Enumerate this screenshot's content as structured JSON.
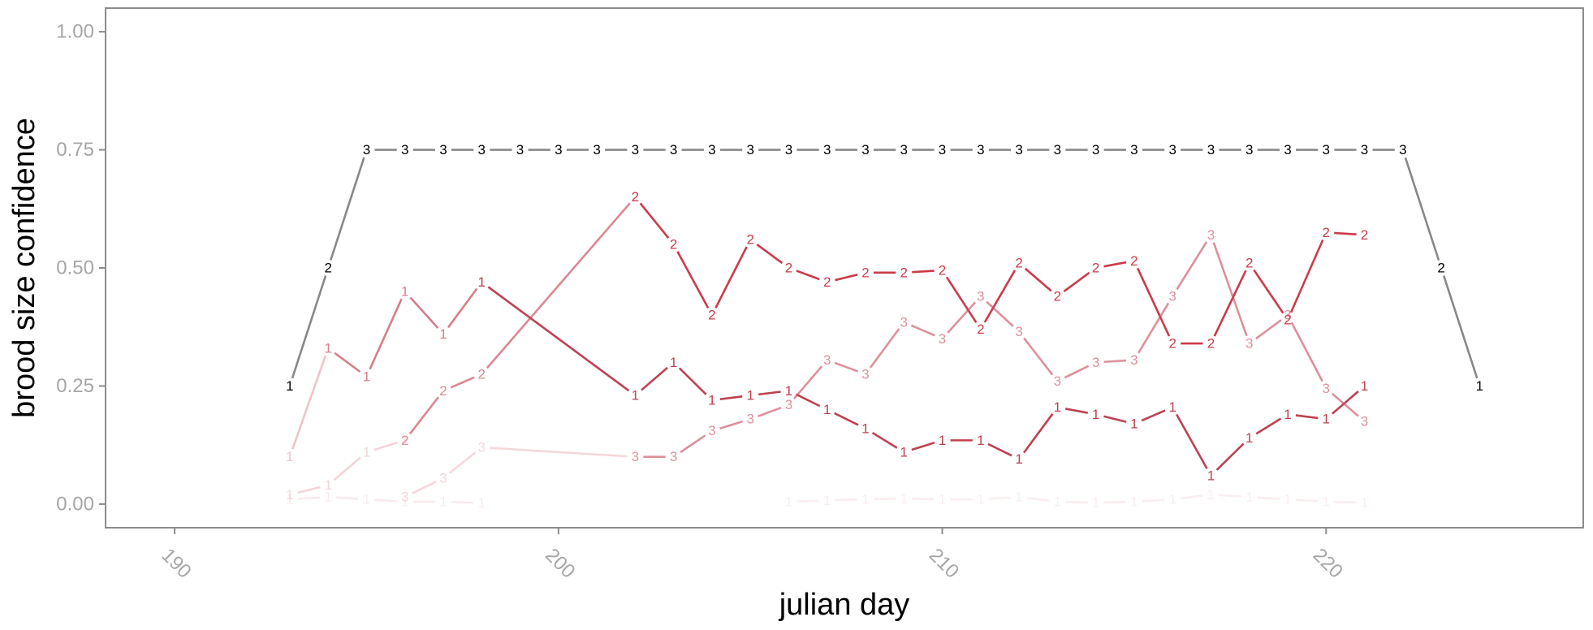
{
  "chart_data": {
    "type": "line",
    "xlabel": "julian day",
    "ylabel": "brood size confidence",
    "xlim": [
      188.2,
      226.7
    ],
    "ylim": [
      -0.05,
      1.05
    ],
    "x_ticks": [
      190,
      200,
      210,
      220
    ],
    "y_ticks": [
      0.0,
      0.25,
      0.5,
      0.75,
      1.0
    ],
    "x_tick_labels": [
      "190",
      "200",
      "210",
      "220"
    ],
    "y_tick_labels": [
      "0.00",
      "0.25",
      "0.50",
      "0.75",
      "1.00"
    ],
    "grid": false,
    "legend": "none",
    "series": [
      {
        "color": "#888888",
        "opacity": 1,
        "points": [
          {
            "x": 193,
            "y": 0.25,
            "label": "1"
          },
          {
            "x": 194,
            "y": 0.5,
            "label": "2"
          },
          {
            "x": 195,
            "y": 0.75,
            "label": "3"
          },
          {
            "x": 196,
            "y": 0.75,
            "label": "3"
          },
          {
            "x": 197,
            "y": 0.75,
            "label": "3"
          },
          {
            "x": 198,
            "y": 0.75,
            "label": "3"
          },
          {
            "x": 199,
            "y": 0.75,
            "label": "3"
          },
          {
            "x": 200,
            "y": 0.75,
            "label": "3"
          },
          {
            "x": 201,
            "y": 0.75,
            "label": "3"
          },
          {
            "x": 202,
            "y": 0.75,
            "label": "3"
          },
          {
            "x": 203,
            "y": 0.75,
            "label": "3"
          },
          {
            "x": 204,
            "y": 0.75,
            "label": "3"
          },
          {
            "x": 205,
            "y": 0.75,
            "label": "3"
          },
          {
            "x": 206,
            "y": 0.75,
            "label": "3"
          },
          {
            "x": 207,
            "y": 0.75,
            "label": "3"
          },
          {
            "x": 208,
            "y": 0.75,
            "label": "3"
          },
          {
            "x": 209,
            "y": 0.75,
            "label": "3"
          },
          {
            "x": 210,
            "y": 0.75,
            "label": "3"
          },
          {
            "x": 211,
            "y": 0.75,
            "label": "3"
          },
          {
            "x": 212,
            "y": 0.75,
            "label": "3"
          },
          {
            "x": 213,
            "y": 0.75,
            "label": "3"
          },
          {
            "x": 214,
            "y": 0.75,
            "label": "3"
          },
          {
            "x": 215,
            "y": 0.75,
            "label": "3"
          },
          {
            "x": 216,
            "y": 0.75,
            "label": "3"
          },
          {
            "x": 217,
            "y": 0.75,
            "label": "3"
          },
          {
            "x": 218,
            "y": 0.75,
            "label": "3"
          },
          {
            "x": 219,
            "y": 0.75,
            "label": "3"
          },
          {
            "x": 220,
            "y": 0.75,
            "label": "3"
          },
          {
            "x": 221,
            "y": 0.75,
            "label": "3"
          },
          {
            "x": 222,
            "y": 0.75,
            "label": "3"
          },
          {
            "x": 223,
            "y": 0.5,
            "label": "2"
          },
          {
            "x": 224,
            "y": 0.25,
            "label": "1"
          }
        ]
      },
      {
        "color": "#b22233",
        "opacity": 0.85,
        "points": [
          {
            "x": 198,
            "y": 0.47,
            "label": "1"
          },
          {
            "x": 202,
            "y": 0.23,
            "label": "1"
          },
          {
            "x": 203,
            "y": 0.3,
            "label": "1"
          },
          {
            "x": 204,
            "y": 0.22,
            "label": "1"
          },
          {
            "x": 205,
            "y": 0.23,
            "label": "1"
          },
          {
            "x": 206,
            "y": 0.24,
            "label": "1"
          },
          {
            "x": 207,
            "y": 0.2,
            "label": "1"
          },
          {
            "x": 208,
            "y": 0.16,
            "label": "1"
          },
          {
            "x": 209,
            "y": 0.11,
            "label": "1"
          },
          {
            "x": 210,
            "y": 0.135,
            "label": "1"
          },
          {
            "x": 211,
            "y": 0.135,
            "label": "1"
          },
          {
            "x": 212,
            "y": 0.095,
            "label": "1"
          },
          {
            "x": 213,
            "y": 0.205,
            "label": "1"
          },
          {
            "x": 214,
            "y": 0.19,
            "label": "1"
          },
          {
            "x": 215,
            "y": 0.17,
            "label": "1"
          },
          {
            "x": 216,
            "y": 0.205,
            "label": "1"
          },
          {
            "x": 217,
            "y": 0.06,
            "label": "1"
          },
          {
            "x": 218,
            "y": 0.14,
            "label": "1"
          },
          {
            "x": 219,
            "y": 0.19,
            "label": "1"
          },
          {
            "x": 220,
            "y": 0.18,
            "label": "1"
          },
          {
            "x": 221,
            "y": 0.25,
            "label": "1"
          }
        ]
      },
      {
        "color": "#c52838",
        "opacity": 0.9,
        "points": [
          {
            "x": 202,
            "y": 0.65,
            "label": "2"
          },
          {
            "x": 203,
            "y": 0.55,
            "label": "2"
          },
          {
            "x": 204,
            "y": 0.4,
            "label": "2"
          },
          {
            "x": 205,
            "y": 0.56,
            "label": "2"
          },
          {
            "x": 206,
            "y": 0.5,
            "label": "2"
          },
          {
            "x": 207,
            "y": 0.47,
            "label": "2"
          },
          {
            "x": 208,
            "y": 0.49,
            "label": "2"
          },
          {
            "x": 209,
            "y": 0.49,
            "label": "2"
          },
          {
            "x": 210,
            "y": 0.495,
            "label": "2"
          },
          {
            "x": 211,
            "y": 0.37,
            "label": "2"
          },
          {
            "x": 212,
            "y": 0.51,
            "label": "2"
          },
          {
            "x": 213,
            "y": 0.44,
            "label": "2"
          },
          {
            "x": 214,
            "y": 0.5,
            "label": "2"
          },
          {
            "x": 215,
            "y": 0.515,
            "label": "2"
          },
          {
            "x": 216,
            "y": 0.34,
            "label": "2"
          },
          {
            "x": 217,
            "y": 0.34,
            "label": "2"
          },
          {
            "x": 218,
            "y": 0.51,
            "label": "2"
          },
          {
            "x": 219,
            "y": 0.39,
            "label": "2"
          },
          {
            "x": 220,
            "y": 0.575,
            "label": "2"
          },
          {
            "x": 221,
            "y": 0.57,
            "label": "2"
          }
        ]
      },
      {
        "color": "#c44a58",
        "opacity": 0.7,
        "points": [
          {
            "x": 194,
            "y": 0.33,
            "label": "1"
          },
          {
            "x": 195,
            "y": 0.27,
            "label": "1"
          },
          {
            "x": 196,
            "y": 0.45,
            "label": "1"
          },
          {
            "x": 197,
            "y": 0.36,
            "label": "1"
          },
          {
            "x": 198,
            "y": 0.47,
            "label": "1"
          }
        ]
      },
      {
        "color": "#c84858",
        "opacity": 0.65,
        "points": [
          {
            "x": 196,
            "y": 0.135,
            "label": "2"
          },
          {
            "x": 197,
            "y": 0.24,
            "label": "2"
          },
          {
            "x": 198,
            "y": 0.275,
            "label": "2"
          },
          {
            "x": 202,
            "y": 0.65,
            "label": "2"
          }
        ]
      },
      {
        "color": "#c84858",
        "opacity": 0.6,
        "points": [
          {
            "x": 202,
            "y": 0.1,
            "label": "3"
          },
          {
            "x": 203,
            "y": 0.1,
            "label": "3"
          },
          {
            "x": 204,
            "y": 0.155,
            "label": "3"
          },
          {
            "x": 205,
            "y": 0.18,
            "label": "3"
          },
          {
            "x": 206,
            "y": 0.21,
            "label": "3"
          },
          {
            "x": 207,
            "y": 0.305,
            "label": "3"
          },
          {
            "x": 208,
            "y": 0.275,
            "label": "3"
          },
          {
            "x": 209,
            "y": 0.385,
            "label": "3"
          },
          {
            "x": 210,
            "y": 0.35,
            "label": "3"
          },
          {
            "x": 211,
            "y": 0.44,
            "label": "3"
          },
          {
            "x": 212,
            "y": 0.365,
            "label": "3"
          },
          {
            "x": 213,
            "y": 0.26,
            "label": "3"
          },
          {
            "x": 214,
            "y": 0.3,
            "label": "3"
          },
          {
            "x": 215,
            "y": 0.305,
            "label": "3"
          },
          {
            "x": 216,
            "y": 0.44,
            "label": "3"
          },
          {
            "x": 217,
            "y": 0.57,
            "label": "3"
          },
          {
            "x": 218,
            "y": 0.34,
            "label": "3"
          },
          {
            "x": 219,
            "y": 0.4,
            "label": "3"
          },
          {
            "x": 220,
            "y": 0.245,
            "label": "3"
          },
          {
            "x": 221,
            "y": 0.175,
            "label": "3"
          }
        ]
      },
      {
        "color": "#e08a95",
        "opacity": 0.5,
        "points": [
          {
            "x": 193,
            "y": 0.1,
            "label": "1"
          },
          {
            "x": 194,
            "y": 0.33,
            "label": "1"
          }
        ]
      },
      {
        "color": "#e7a9b1",
        "opacity": 0.5,
        "points": [
          {
            "x": 193,
            "y": 0.02,
            "label": "1"
          },
          {
            "x": 194,
            "y": 0.04,
            "label": "1"
          },
          {
            "x": 195,
            "y": 0.11,
            "label": "1"
          },
          {
            "x": 196,
            "y": 0.135,
            "label": "1"
          }
        ]
      },
      {
        "color": "#e7a9b1",
        "opacity": 0.45,
        "points": [
          {
            "x": 196,
            "y": 0.015,
            "label": "3"
          },
          {
            "x": 197,
            "y": 0.055,
            "label": "3"
          },
          {
            "x": 198,
            "y": 0.12,
            "label": "3"
          },
          {
            "x": 202,
            "y": 0.1,
            "label": "3"
          }
        ]
      },
      {
        "color": "#f0c8cd",
        "opacity": 0.35,
        "points": [
          {
            "x": 193,
            "y": 0.01,
            "label": "1"
          },
          {
            "x": 194,
            "y": 0.015,
            "label": "1"
          },
          {
            "x": 195,
            "y": 0.01,
            "label": "1"
          },
          {
            "x": 196,
            "y": 0.005,
            "label": "1"
          },
          {
            "x": 197,
            "y": 0.005,
            "label": "1"
          },
          {
            "x": 198,
            "y": 0.002,
            "label": "1"
          }
        ]
      },
      {
        "color": "#f0c8cd",
        "opacity": 0.3,
        "points": [
          {
            "x": 206,
            "y": 0.005,
            "label": "1"
          },
          {
            "x": 207,
            "y": 0.008,
            "label": "1"
          },
          {
            "x": 208,
            "y": 0.01,
            "label": "1"
          },
          {
            "x": 209,
            "y": 0.012,
            "label": "1"
          },
          {
            "x": 210,
            "y": 0.01,
            "label": "1"
          },
          {
            "x": 211,
            "y": 0.01,
            "label": "1"
          },
          {
            "x": 212,
            "y": 0.015,
            "label": "1"
          },
          {
            "x": 213,
            "y": 0.005,
            "label": "1"
          },
          {
            "x": 214,
            "y": 0.003,
            "label": "1"
          },
          {
            "x": 215,
            "y": 0.005,
            "label": "1"
          },
          {
            "x": 216,
            "y": 0.01,
            "label": "1"
          },
          {
            "x": 217,
            "y": 0.02,
            "label": "1"
          },
          {
            "x": 218,
            "y": 0.015,
            "label": "1"
          },
          {
            "x": 219,
            "y": 0.01,
            "label": "1"
          },
          {
            "x": 220,
            "y": 0.005,
            "label": "1"
          },
          {
            "x": 221,
            "y": 0.003,
            "label": "1"
          }
        ]
      }
    ]
  }
}
